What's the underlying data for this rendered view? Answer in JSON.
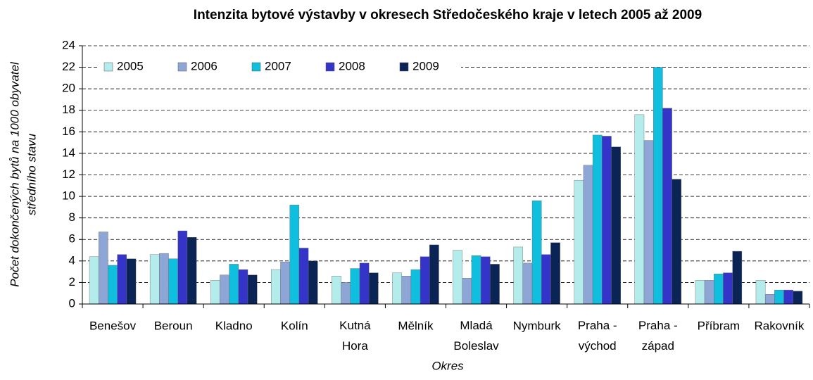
{
  "chart_data": {
    "type": "bar",
    "title": "Intenzita bytové výstavby v okresech Středočeského kraje v letech 2005 až 2009",
    "xlabel": "Okres",
    "ylabel": [
      "Počet dokončených bytů na 1000 obyvatel",
      "středního stavu"
    ],
    "categories": [
      "Benešov",
      "Beroun",
      "Kladno",
      "Kolín",
      "Kutná Hora",
      "Mělník",
      "Mladá Boleslav",
      "Nymburk",
      "Praha - východ",
      "Praha - západ",
      "Příbram",
      "Rakovník"
    ],
    "series": [
      {
        "name": "2005",
        "color": "#b4ecec",
        "values": [
          4.4,
          4.6,
          2.2,
          3.2,
          2.6,
          2.9,
          5.0,
          5.3,
          11.5,
          17.6,
          2.2,
          2.2
        ]
      },
      {
        "name": "2006",
        "color": "#8ea6d6",
        "values": [
          6.7,
          4.7,
          2.7,
          3.9,
          2.0,
          2.6,
          2.4,
          3.8,
          12.9,
          15.2,
          2.2,
          0.9
        ]
      },
      {
        "name": "2007",
        "color": "#10bede",
        "values": [
          3.6,
          4.2,
          3.7,
          9.2,
          3.3,
          3.2,
          4.5,
          9.6,
          15.7,
          22.0,
          2.8,
          1.3
        ]
      },
      {
        "name": "2008",
        "color": "#3434c8",
        "values": [
          4.6,
          6.8,
          3.2,
          5.2,
          3.8,
          4.4,
          4.4,
          4.6,
          15.6,
          18.2,
          2.9,
          1.3
        ]
      },
      {
        "name": "2009",
        "color": "#0a2456",
        "values": [
          4.2,
          6.2,
          2.7,
          4.0,
          2.9,
          5.5,
          3.7,
          5.7,
          14.6,
          11.6,
          4.9,
          1.2
        ]
      }
    ],
    "ylim": [
      0,
      24
    ],
    "yticks": [
      0,
      2,
      4,
      6,
      8,
      10,
      12,
      14,
      16,
      18,
      20,
      22,
      24
    ],
    "grid": true,
    "legend": "top-left"
  }
}
